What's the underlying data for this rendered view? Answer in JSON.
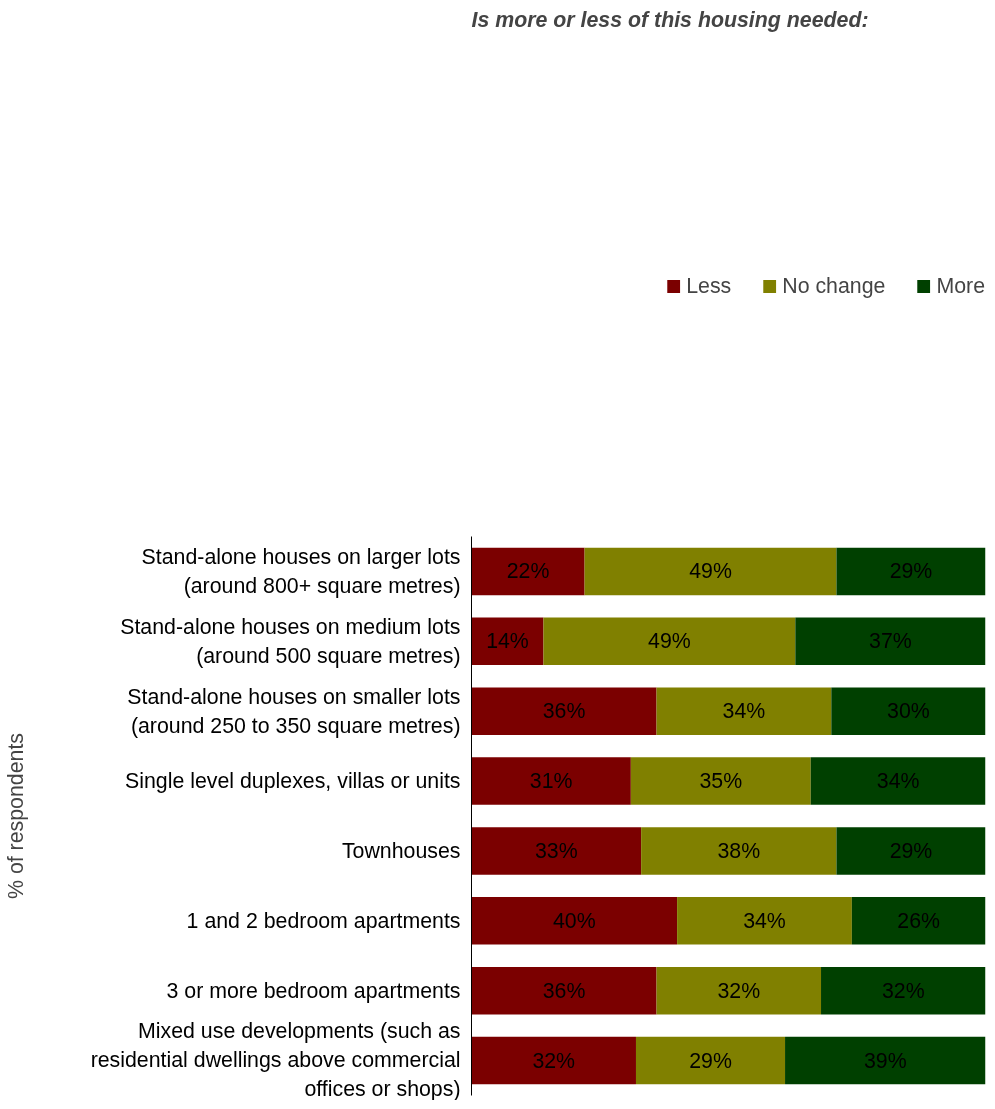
{
  "chart_data": {
    "type": "bar",
    "orientation": "horizontal",
    "stacked": true,
    "title": "Is more or less of this housing needed:",
    "ylabel": "% of respondents",
    "categories": [
      "Stand-alone houses on larger lots (around 800+ square metres)",
      "Stand-alone houses on medium lots (around 500 square metres)",
      "Stand-alone houses on smaller lots (around 250 to 350 square metres)",
      "Single level duplexes, villas or units",
      "Townhouses",
      "1 and 2 bedroom apartments",
      "3 or more bedroom apartments",
      "Mixed use developments (such as residential dwellings above commercial offices or shops)"
    ],
    "series": [
      {
        "name": "Less",
        "color": "#7b0000",
        "values": [
          22,
          14,
          36,
          31,
          33,
          40,
          36,
          32
        ],
        "value_labels": [
          "22%",
          "14%",
          "36%",
          "31%",
          "33%",
          "40%",
          "36%",
          "32%"
        ]
      },
      {
        "name": "No change",
        "color": "#808000",
        "values": [
          49,
          49,
          34,
          35,
          38,
          34,
          32,
          29
        ],
        "value_labels": [
          "49%",
          "49%",
          "34%",
          "35%",
          "38%",
          "34%",
          "32%",
          "29%"
        ]
      },
      {
        "name": "More",
        "color": "#004000",
        "values": [
          29,
          37,
          30,
          34,
          29,
          26,
          32,
          39
        ],
        "value_labels": [
          "29%",
          "37%",
          "30%",
          "34%",
          "29%",
          "26%",
          "32%",
          "39%"
        ]
      }
    ],
    "xlim": [
      0,
      100
    ],
    "tick_labels": "y",
    "grid": false,
    "legend": "top right"
  }
}
